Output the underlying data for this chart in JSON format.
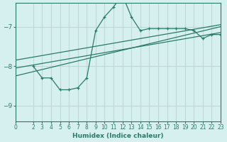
{
  "bg_color": "#d6f0f0",
  "grid_color": "#c0d8d8",
  "line_color": "#2a7a6a",
  "xlabel": "Humidex (Indice chaleur)",
  "xlim": [
    0,
    23
  ],
  "ylim": [
    -9.4,
    -6.4
  ],
  "yticks": [
    -9,
    -8,
    -7
  ],
  "xticks": [
    0,
    2,
    3,
    4,
    5,
    6,
    7,
    8,
    9,
    10,
    11,
    12,
    13,
    14,
    15,
    16,
    17,
    18,
    19,
    20,
    21,
    22,
    23
  ],
  "main_x": [
    2,
    3,
    4,
    5,
    6,
    7,
    8,
    9,
    10,
    11,
    12,
    13,
    14,
    15,
    16,
    17,
    18,
    19,
    20,
    21,
    22,
    23
  ],
  "main_y": [
    -8.0,
    -8.3,
    -8.3,
    -8.6,
    -8.6,
    -8.55,
    -8.3,
    -7.1,
    -6.75,
    -6.5,
    -6.2,
    -6.75,
    -7.1,
    -7.05,
    -7.05,
    -7.05,
    -7.05,
    -7.05,
    -7.1,
    -7.3,
    -7.2,
    -7.2
  ],
  "line1_x": [
    0,
    23
  ],
  "line1_y": [
    -8.05,
    -7.15
  ],
  "line2_x": [
    0,
    23
  ],
  "line2_y": [
    -7.85,
    -6.95
  ],
  "line3_x": [
    0,
    23
  ],
  "line3_y": [
    -8.25,
    -7.0
  ]
}
